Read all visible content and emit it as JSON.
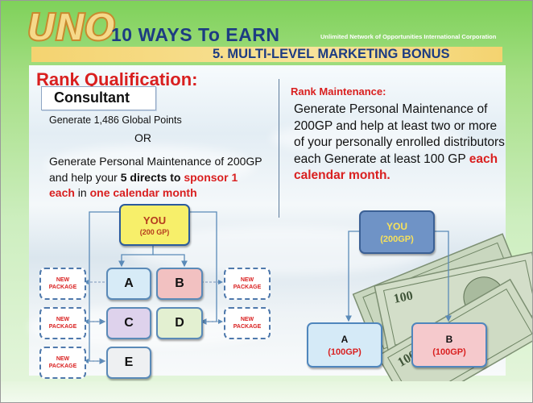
{
  "header": {
    "logo": "UNO",
    "title": "10 WAYS To EARN",
    "corporation": "Unlimited Network of Opportunities International Corporation",
    "subtitle": "5. MULTI-LEVEL MARKETING  BONUS"
  },
  "qualification": {
    "heading": "Rank Qualification:",
    "rank": "Consultant",
    "line1": "Generate  1,486 Global Points",
    "or": "OR",
    "p_a": "Generate Personal Maintenance of 200GP and help your ",
    "p_b": "5 directs to",
    "p_c": "sponsor 1 each",
    "p_d": " in ",
    "p_e": "one calendar month"
  },
  "maintenance": {
    "heading": "Rank Maintenance:",
    "p_a": "Generate Personal Maintenance of  200GP and help at least two or more of your personally enrolled distributors each Generate at least 100 GP ",
    "p_b": "each calendar month."
  },
  "left_diagram": {
    "you_label": "YOU",
    "you_value": "(200 GP)",
    "nodes": [
      "A",
      "B",
      "C",
      "D",
      "E"
    ],
    "package_line1": "NEW",
    "package_line2": "PACKAGE"
  },
  "right_diagram": {
    "you_label": "YOU",
    "you_value": "(200GP)",
    "a_label": "A",
    "a_value": "(100GP)",
    "b_label": "B",
    "b_value": "(100GP)"
  },
  "colors": {
    "title_blue": "#1d3c82",
    "accent_red": "#d91f1f",
    "banner_gold": "#f4d370",
    "background_green": "#7fd15a"
  }
}
